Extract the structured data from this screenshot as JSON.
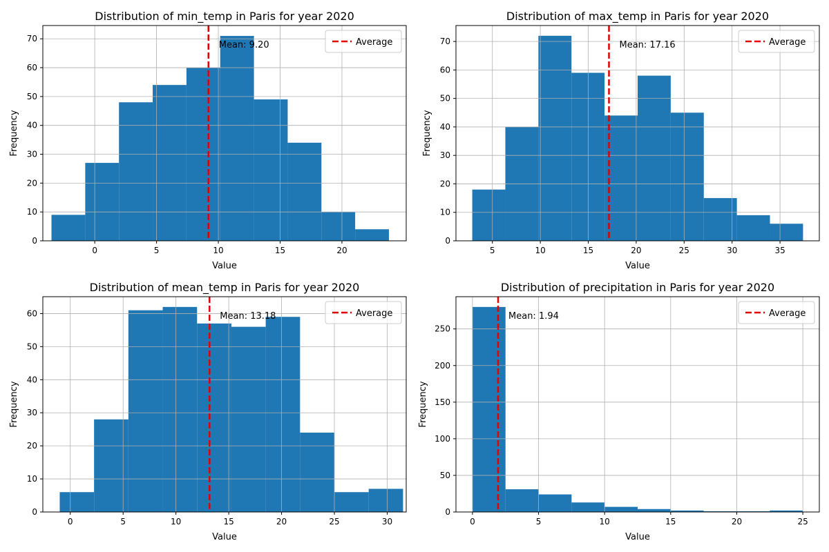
{
  "chart_data": [
    {
      "type": "bar",
      "title": "Distribution of min_temp in Paris for year 2020",
      "xlabel": "Value",
      "ylabel": "Frequency",
      "xlim": [
        -4.2,
        25.2
      ],
      "ylim": [
        0,
        74.6
      ],
      "xticks": [
        0,
        5,
        10,
        15,
        20
      ],
      "yticks": [
        0,
        10,
        20,
        30,
        40,
        50,
        60,
        70
      ],
      "bin_edges": [
        -3.5,
        -0.77,
        1.96,
        4.69,
        7.42,
        10.15,
        12.88,
        15.61,
        18.34,
        21.07,
        23.8
      ],
      "values": [
        9,
        27,
        48,
        54,
        60,
        71,
        49,
        34,
        10,
        4
      ],
      "mean": 9.2,
      "mean_label": "Mean: 9.20",
      "legend": "Average",
      "legend_loc": "upper right",
      "grid": true
    },
    {
      "type": "bar",
      "title": "Distribution of max_temp in Paris for year 2020",
      "xlabel": "Value",
      "ylabel": "Frequency",
      "xlim": [
        1.2,
        39.1
      ],
      "ylim": [
        0,
        75.6
      ],
      "xticks": [
        5,
        10,
        15,
        20,
        25,
        30,
        35
      ],
      "yticks": [
        0,
        10,
        20,
        30,
        40,
        50,
        60,
        70
      ],
      "bin_edges": [
        2.9,
        6.35,
        9.8,
        13.25,
        16.7,
        20.15,
        23.6,
        27.05,
        30.5,
        33.95,
        37.4
      ],
      "values": [
        18,
        40,
        72,
        59,
        44,
        58,
        45,
        15,
        9,
        6
      ],
      "mean": 17.16,
      "mean_label": "Mean: 17.16",
      "legend": "Average",
      "legend_loc": "upper right",
      "grid": true
    },
    {
      "type": "bar",
      "title": "Distribution of mean_temp in Paris for year 2020",
      "xlabel": "Value",
      "ylabel": "Frequency",
      "xlim": [
        -2.6,
        31.8
      ],
      "ylim": [
        0,
        65.1
      ],
      "xticks": [
        0,
        5,
        10,
        15,
        20,
        25,
        30
      ],
      "yticks": [
        0,
        10,
        20,
        30,
        40,
        50,
        60
      ],
      "bin_edges": [
        -1.0,
        2.25,
        5.5,
        8.75,
        12.0,
        15.25,
        18.5,
        21.75,
        25.0,
        28.25,
        31.5
      ],
      "values": [
        6,
        28,
        61,
        62,
        57,
        56,
        59,
        24,
        6,
        7
      ],
      "mean": 13.18,
      "mean_label": "Mean: 13.18",
      "legend": "Average",
      "legend_loc": "upper right",
      "grid": true
    },
    {
      "type": "bar",
      "title": "Distribution of precipitation in Paris for year 2020",
      "xlabel": "Value",
      "ylabel": "Frequency",
      "xlim": [
        -1.25,
        26.25
      ],
      "ylim": [
        0,
        294
      ],
      "xticks": [
        0,
        5,
        10,
        15,
        20,
        25
      ],
      "yticks": [
        0,
        50,
        100,
        150,
        200,
        250
      ],
      "bin_edges": [
        0,
        2.5,
        5,
        7.5,
        10,
        12.5,
        15,
        17.5,
        20,
        22.5,
        25
      ],
      "values": [
        280,
        31,
        24,
        13,
        7,
        4,
        2,
        1,
        1,
        2
      ],
      "mean": 1.94,
      "mean_label": "Mean: 1.94",
      "legend": "Average",
      "legend_loc": "upper right",
      "grid": true
    }
  ]
}
